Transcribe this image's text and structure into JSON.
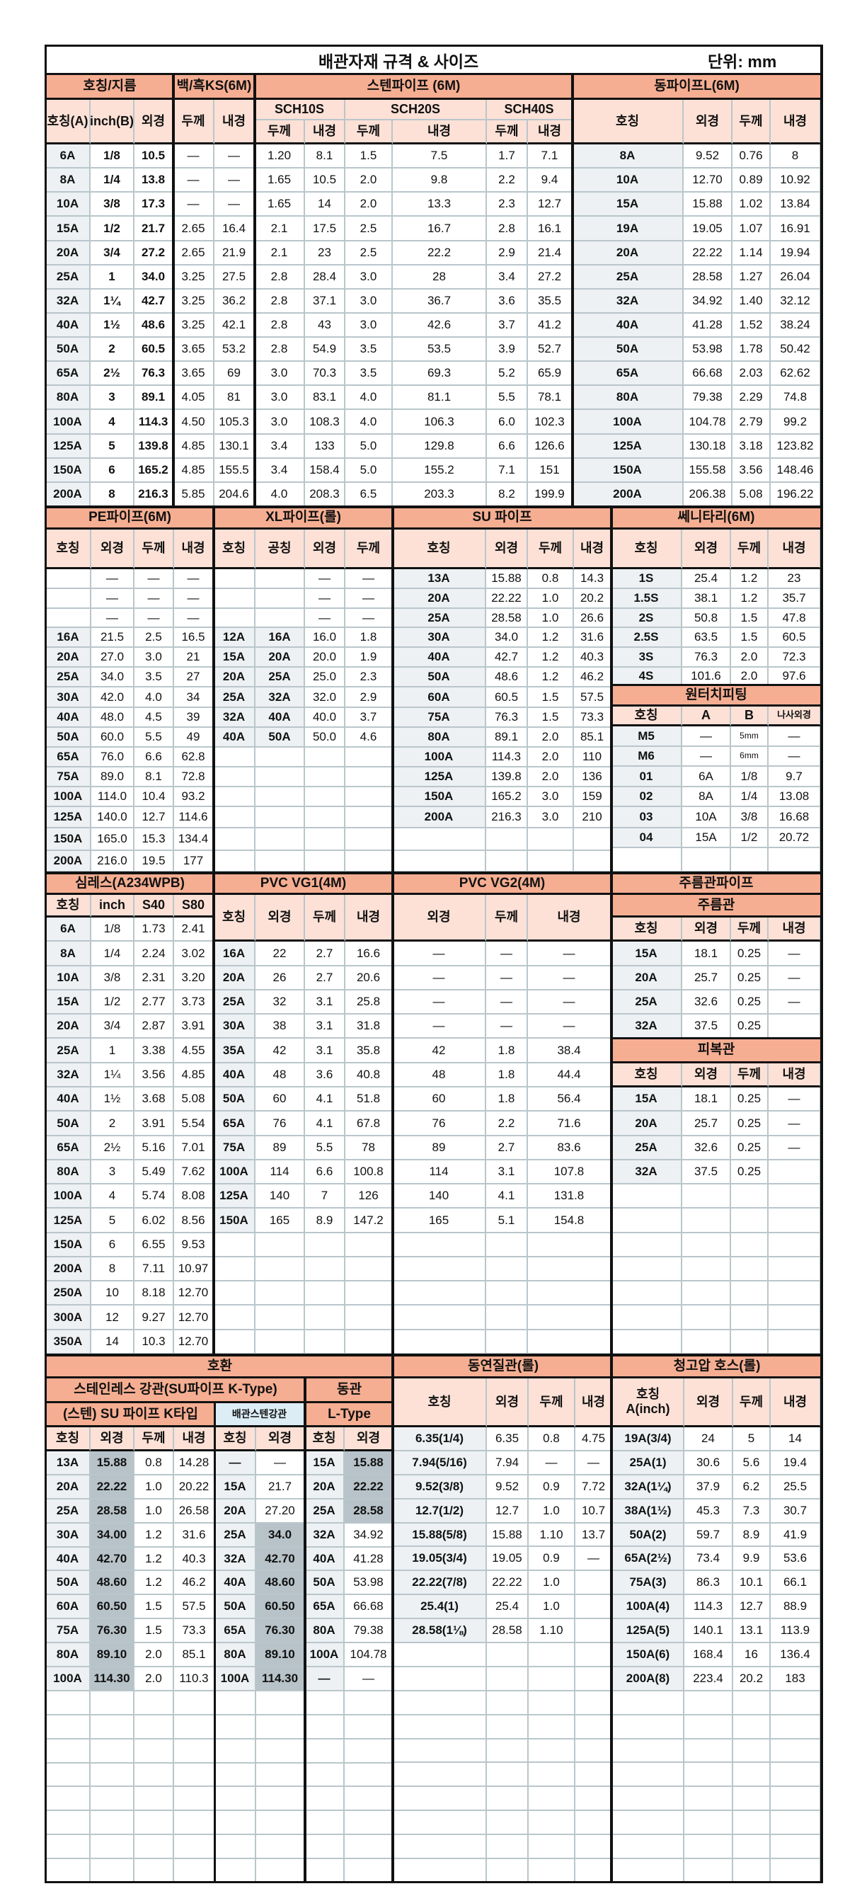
{
  "title": "배관자재 규격 & 사이즈",
  "unit": "단위: mm",
  "colors": {
    "header": "#f5ae92",
    "subheader": "#fde1d6",
    "key_cell": "#edf1f3",
    "highlight": "#b7c3c8",
    "blue_header": "#dcedf6"
  },
  "steel": {
    "header_size": "호칭/지름",
    "header_ks": "백/흑KS(6M)",
    "header_sten": "스텐파이프 (6M)",
    "sch": [
      "SCH10S",
      "SCH20S",
      "SCH40S"
    ],
    "cols": [
      "호칭(A)",
      "inch(B)",
      "외경",
      "두께",
      "내경",
      "두께",
      "내경",
      "두께",
      "내경",
      "두께",
      "내경"
    ],
    "rows": [
      [
        "6A",
        "1/8",
        "10.5",
        "—",
        "—",
        "1.20",
        "8.1",
        "1.5",
        "7.5",
        "1.7",
        "7.1"
      ],
      [
        "8A",
        "1/4",
        "13.8",
        "—",
        "—",
        "1.65",
        "10.5",
        "2.0",
        "9.8",
        "2.2",
        "9.4"
      ],
      [
        "10A",
        "3/8",
        "17.3",
        "—",
        "—",
        "1.65",
        "14",
        "2.0",
        "13.3",
        "2.3",
        "12.7"
      ],
      [
        "15A",
        "1/2",
        "21.7",
        "2.65",
        "16.4",
        "2.1",
        "17.5",
        "2.5",
        "16.7",
        "2.8",
        "16.1"
      ],
      [
        "20A",
        "3/4",
        "27.2",
        "2.65",
        "21.9",
        "2.1",
        "23",
        "2.5",
        "22.2",
        "2.9",
        "21.4"
      ],
      [
        "25A",
        "1",
        "34.0",
        "3.25",
        "27.5",
        "2.8",
        "28.4",
        "3.0",
        "28",
        "3.4",
        "27.2"
      ],
      [
        "32A",
        "1¼",
        "42.7",
        "3.25",
        "36.2",
        "2.8",
        "37.1",
        "3.0",
        "36.7",
        "3.6",
        "35.5"
      ],
      [
        "40A",
        "1½",
        "48.6",
        "3.25",
        "42.1",
        "2.8",
        "43",
        "3.0",
        "42.6",
        "3.7",
        "41.2"
      ],
      [
        "50A",
        "2",
        "60.5",
        "3.65",
        "53.2",
        "2.8",
        "54.9",
        "3.5",
        "53.5",
        "3.9",
        "52.7"
      ],
      [
        "65A",
        "2½",
        "76.3",
        "3.65",
        "69",
        "3.0",
        "70.3",
        "3.5",
        "69.3",
        "5.2",
        "65.9"
      ],
      [
        "80A",
        "3",
        "89.1",
        "4.05",
        "81",
        "3.0",
        "83.1",
        "4.0",
        "81.1",
        "5.5",
        "78.1"
      ],
      [
        "100A",
        "4",
        "114.3",
        "4.50",
        "105.3",
        "3.0",
        "108.3",
        "4.0",
        "106.3",
        "6.0",
        "102.3"
      ],
      [
        "125A",
        "5",
        "139.8",
        "4.85",
        "130.1",
        "3.4",
        "133",
        "5.0",
        "129.8",
        "6.6",
        "126.6"
      ],
      [
        "150A",
        "6",
        "165.2",
        "4.85",
        "155.5",
        "3.4",
        "158.4",
        "5.0",
        "155.2",
        "7.1",
        "151"
      ],
      [
        "200A",
        "8",
        "216.3",
        "5.85",
        "204.6",
        "4.0",
        "208.3",
        "6.5",
        "203.3",
        "8.2",
        "199.9"
      ]
    ]
  },
  "copper": {
    "title": "동파이프L(6M)",
    "cols": [
      "호칭",
      "외경",
      "두께",
      "내경"
    ],
    "rows": [
      [
        "8A",
        "9.52",
        "0.76",
        "8"
      ],
      [
        "10A",
        "12.70",
        "0.89",
        "10.92"
      ],
      [
        "15A",
        "15.88",
        "1.02",
        "13.84"
      ],
      [
        "19A",
        "19.05",
        "1.07",
        "16.91"
      ],
      [
        "20A",
        "22.22",
        "1.14",
        "19.94"
      ],
      [
        "25A",
        "28.58",
        "1.27",
        "26.04"
      ],
      [
        "32A",
        "34.92",
        "1.40",
        "32.12"
      ],
      [
        "40A",
        "41.28",
        "1.52",
        "38.24"
      ],
      [
        "50A",
        "53.98",
        "1.78",
        "50.42"
      ],
      [
        "65A",
        "66.68",
        "2.03",
        "62.62"
      ],
      [
        "80A",
        "79.38",
        "2.29",
        "74.8"
      ],
      [
        "100A",
        "104.78",
        "2.79",
        "99.2"
      ],
      [
        "125A",
        "130.18",
        "3.18",
        "123.82"
      ],
      [
        "150A",
        "155.58",
        "3.56",
        "148.46"
      ],
      [
        "200A",
        "206.38",
        "5.08",
        "196.22"
      ]
    ]
  },
  "pe": {
    "title": "PE파이프(6M)",
    "cols": [
      "호칭",
      "외경",
      "두께",
      "내경"
    ],
    "rows": [
      [
        "",
        "—",
        "—",
        "—"
      ],
      [
        "",
        "—",
        "—",
        "—"
      ],
      [
        "",
        "—",
        "—",
        "—"
      ],
      [
        "16A",
        "21.5",
        "2.5",
        "16.5"
      ],
      [
        "20A",
        "27.0",
        "3.0",
        "21"
      ],
      [
        "25A",
        "34.0",
        "3.5",
        "27"
      ],
      [
        "30A",
        "42.0",
        "4.0",
        "34"
      ],
      [
        "40A",
        "48.0",
        "4.5",
        "39"
      ],
      [
        "50A",
        "60.0",
        "5.5",
        "49"
      ],
      [
        "65A",
        "76.0",
        "6.6",
        "62.8"
      ],
      [
        "75A",
        "89.0",
        "8.1",
        "72.8"
      ],
      [
        "100A",
        "114.0",
        "10.4",
        "93.2"
      ],
      [
        "125A",
        "140.0",
        "12.7",
        "114.6"
      ],
      [
        "150A",
        "165.0",
        "15.3",
        "134.4"
      ],
      [
        "200A",
        "216.0",
        "19.5",
        "177"
      ]
    ]
  },
  "xl": {
    "title": "XL파이프(롤)",
    "cols": [
      "호칭",
      "공칭",
      "외경",
      "두께"
    ],
    "rows": [
      [
        "",
        "",
        "—",
        "—"
      ],
      [
        "",
        "",
        "—",
        "—"
      ],
      [
        "",
        "",
        "—",
        "—"
      ],
      [
        "12A",
        "16A",
        "16.0",
        "1.8"
      ],
      [
        "15A",
        "20A",
        "20.0",
        "1.9"
      ],
      [
        "20A",
        "25A",
        "25.0",
        "2.3"
      ],
      [
        "25A",
        "32A",
        "32.0",
        "2.9"
      ],
      [
        "32A",
        "40A",
        "40.0",
        "3.7"
      ],
      [
        "40A",
        "50A",
        "50.0",
        "4.6"
      ]
    ]
  },
  "su": {
    "title": "SU 파이프",
    "cols": [
      "호칭",
      "외경",
      "두께",
      "내경"
    ],
    "rows": [
      [
        "13A",
        "15.88",
        "0.8",
        "14.3"
      ],
      [
        "20A",
        "22.22",
        "1.0",
        "20.2"
      ],
      [
        "25A",
        "28.58",
        "1.0",
        "26.6"
      ],
      [
        "30A",
        "34.0",
        "1.2",
        "31.6"
      ],
      [
        "40A",
        "42.7",
        "1.2",
        "40.3"
      ],
      [
        "50A",
        "48.6",
        "1.2",
        "46.2"
      ],
      [
        "60A",
        "60.5",
        "1.5",
        "57.5"
      ],
      [
        "75A",
        "76.3",
        "1.5",
        "73.3"
      ],
      [
        "80A",
        "89.1",
        "2.0",
        "85.1"
      ],
      [
        "100A",
        "114.3",
        "2.0",
        "110"
      ],
      [
        "125A",
        "139.8",
        "2.0",
        "136"
      ],
      [
        "150A",
        "165.2",
        "3.0",
        "159"
      ],
      [
        "200A",
        "216.3",
        "3.0",
        "210"
      ]
    ]
  },
  "sanitary": {
    "title": "쎄니타리(6M)",
    "cols": [
      "호칭",
      "외경",
      "두께",
      "내경"
    ],
    "rows": [
      [
        "1S",
        "25.4",
        "1.2",
        "23"
      ],
      [
        "1.5S",
        "38.1",
        "1.2",
        "35.7"
      ],
      [
        "2S",
        "50.8",
        "1.5",
        "47.8"
      ],
      [
        "2.5S",
        "63.5",
        "1.5",
        "60.5"
      ],
      [
        "3S",
        "76.3",
        "2.0",
        "72.3"
      ],
      [
        "4S",
        "101.6",
        "2.0",
        "97.6"
      ]
    ]
  },
  "onetouch": {
    "title": "원터치피팅",
    "cols": [
      "호칭",
      "A",
      "B",
      "나사외경"
    ],
    "rows": [
      [
        "M5",
        "—",
        "5mm",
        "—"
      ],
      [
        "M6",
        "—",
        "6mm",
        "—"
      ],
      [
        "01",
        "6A",
        "1/8",
        "9.7"
      ],
      [
        "02",
        "8A",
        "1/4",
        "13.08"
      ],
      [
        "03",
        "10A",
        "3/8",
        "16.68"
      ],
      [
        "04",
        "15A",
        "1/2",
        "20.72"
      ]
    ]
  },
  "seamless": {
    "title": "심레스(A234WPB)",
    "cols": [
      "호칭",
      "inch",
      "S40",
      "S80"
    ],
    "rows": [
      [
        "6A",
        "1/8",
        "1.73",
        "2.41"
      ],
      [
        "8A",
        "1/4",
        "2.24",
        "3.02"
      ],
      [
        "10A",
        "3/8",
        "2.31",
        "3.20"
      ],
      [
        "15A",
        "1/2",
        "2.77",
        "3.73"
      ],
      [
        "20A",
        "3/4",
        "2.87",
        "3.91"
      ],
      [
        "25A",
        "1",
        "3.38",
        "4.55"
      ],
      [
        "32A",
        "1¼",
        "3.56",
        "4.85"
      ],
      [
        "40A",
        "1½",
        "3.68",
        "5.08"
      ],
      [
        "50A",
        "2",
        "3.91",
        "5.54"
      ],
      [
        "65A",
        "2½",
        "5.16",
        "7.01"
      ],
      [
        "80A",
        "3",
        "5.49",
        "7.62"
      ],
      [
        "100A",
        "4",
        "5.74",
        "8.08"
      ],
      [
        "125A",
        "5",
        "6.02",
        "8.56"
      ],
      [
        "150A",
        "6",
        "6.55",
        "9.53"
      ],
      [
        "200A",
        "8",
        "7.11",
        "10.97"
      ],
      [
        "250A",
        "10",
        "8.18",
        "12.70"
      ],
      [
        "300A",
        "12",
        "9.27",
        "12.70"
      ],
      [
        "350A",
        "14",
        "10.3",
        "12.70"
      ]
    ]
  },
  "pvc1": {
    "title": "PVC VG1(4M)",
    "cols": [
      "호칭",
      "외경",
      "두께",
      "내경"
    ],
    "rows": [
      [
        "16A",
        "22",
        "2.7",
        "16.6"
      ],
      [
        "20A",
        "26",
        "2.7",
        "20.6"
      ],
      [
        "25A",
        "32",
        "3.1",
        "25.8"
      ],
      [
        "30A",
        "38",
        "3.1",
        "31.8"
      ],
      [
        "35A",
        "42",
        "3.1",
        "35.8"
      ],
      [
        "40A",
        "48",
        "3.6",
        "40.8"
      ],
      [
        "50A",
        "60",
        "4.1",
        "51.8"
      ],
      [
        "65A",
        "76",
        "4.1",
        "67.8"
      ],
      [
        "75A",
        "89",
        "5.5",
        "78"
      ],
      [
        "100A",
        "114",
        "6.6",
        "100.8"
      ],
      [
        "125A",
        "140",
        "7",
        "126"
      ],
      [
        "150A",
        "165",
        "8.9",
        "147.2"
      ]
    ]
  },
  "pvc2": {
    "title": "PVC VG2(4M)",
    "cols": [
      "외경",
      "두께",
      "내경"
    ],
    "rows": [
      [
        "—",
        "—",
        "—"
      ],
      [
        "—",
        "—",
        "—"
      ],
      [
        "—",
        "—",
        "—"
      ],
      [
        "—",
        "—",
        "—"
      ],
      [
        "42",
        "1.8",
        "38.4"
      ],
      [
        "48",
        "1.8",
        "44.4"
      ],
      [
        "60",
        "1.8",
        "56.4"
      ],
      [
        "76",
        "2.2",
        "71.6"
      ],
      [
        "89",
        "2.7",
        "83.6"
      ],
      [
        "114",
        "3.1",
        "107.8"
      ],
      [
        "140",
        "4.1",
        "131.8"
      ],
      [
        "165",
        "5.1",
        "154.8"
      ]
    ]
  },
  "corrugated": {
    "title": "주름관파이프",
    "sub1": "주름관",
    "sub2": "피복관",
    "cols": [
      "호칭",
      "외경",
      "두께",
      "내경"
    ],
    "rows1": [
      [
        "15A",
        "18.1",
        "0.25",
        "—"
      ],
      [
        "20A",
        "25.7",
        "0.25",
        "—"
      ],
      [
        "25A",
        "32.6",
        "0.25",
        "—"
      ],
      [
        "32A",
        "37.5",
        "0.25",
        ""
      ]
    ],
    "rows2": [
      [
        "15A",
        "18.1",
        "0.25",
        "—"
      ],
      [
        "20A",
        "25.7",
        "0.25",
        "—"
      ],
      [
        "25A",
        "32.6",
        "0.25",
        "—"
      ],
      [
        "32A",
        "37.5",
        "0.25",
        ""
      ]
    ]
  },
  "compat": {
    "title": "호환",
    "sub_sten": "스테인레스 강관(SU파이프 K-Type)",
    "sub_copper": "동관",
    "sub_ktype": "(스텐) SU 파이프 K타입",
    "sub_pipe": "배관스텐강관",
    "sub_ltype": "L-Type",
    "cols": [
      "호칭",
      "외경",
      "두께",
      "내경",
      "호칭",
      "외경",
      "호칭",
      "외경"
    ],
    "rows": [
      [
        "13A",
        "15.88",
        "0.8",
        "14.28",
        "—",
        "—",
        "15A",
        "15.88"
      ],
      [
        "20A",
        "22.22",
        "1.0",
        "20.22",
        "15A",
        "21.7",
        "20A",
        "22.22"
      ],
      [
        "25A",
        "28.58",
        "1.0",
        "26.58",
        "20A",
        "27.20",
        "25A",
        "28.58"
      ],
      [
        "30A",
        "34.00",
        "1.2",
        "31.6",
        "25A",
        "34.0",
        "32A",
        "34.92"
      ],
      [
        "40A",
        "42.70",
        "1.2",
        "40.3",
        "32A",
        "42.70",
        "40A",
        "41.28"
      ],
      [
        "50A",
        "48.60",
        "1.2",
        "46.2",
        "40A",
        "48.60",
        "50A",
        "53.98"
      ],
      [
        "60A",
        "60.50",
        "1.5",
        "57.5",
        "50A",
        "60.50",
        "65A",
        "66.68"
      ],
      [
        "75A",
        "76.30",
        "1.5",
        "73.3",
        "65A",
        "76.30",
        "80A",
        "79.38"
      ],
      [
        "80A",
        "89.10",
        "2.0",
        "85.1",
        "80A",
        "89.10",
        "100A",
        "104.78"
      ],
      [
        "100A",
        "114.30",
        "2.0",
        "110.3",
        "100A",
        "114.30",
        "—",
        "—"
      ]
    ]
  },
  "soft_copper": {
    "title": "동연질관(롤)",
    "cols": [
      "호칭",
      "외경",
      "두께",
      "내경"
    ],
    "rows": [
      [
        "6.35(1/4)",
        "6.35",
        "0.8",
        "4.75"
      ],
      [
        "7.94(5/16)",
        "7.94",
        "—",
        "—"
      ],
      [
        "9.52(3/8)",
        "9.52",
        "0.9",
        "7.72"
      ],
      [
        "12.7(1/2)",
        "12.7",
        "1.0",
        "10.7"
      ],
      [
        "15.88(5/8)",
        "15.88",
        "1.10",
        "13.7"
      ],
      [
        "19.05(3/4)",
        "19.05",
        "0.9",
        "—"
      ],
      [
        "22.22(7/8)",
        "22.22",
        "1.0",
        ""
      ],
      [
        "25.4(1)",
        "25.4",
        "1.0",
        ""
      ],
      [
        "28.58(1⅛)",
        "28.58",
        "1.10",
        ""
      ]
    ]
  },
  "hose": {
    "title": "청고압 호스(롤)",
    "cols": [
      "호칭\nA(inch)",
      "외경",
      "두께",
      "내경"
    ],
    "rows": [
      [
        "19A(3/4)",
        "24",
        "5",
        "14"
      ],
      [
        "25A(1)",
        "30.6",
        "5.6",
        "19.4"
      ],
      [
        "32A(1¼)",
        "37.9",
        "6.2",
        "25.5"
      ],
      [
        "38A(1½)",
        "45.3",
        "7.3",
        "30.7"
      ],
      [
        "50A(2)",
        "59.7",
        "8.9",
        "41.9"
      ],
      [
        "65A(2½)",
        "73.4",
        "9.9",
        "53.6"
      ],
      [
        "75A(3)",
        "86.3",
        "10.1",
        "66.1"
      ],
      [
        "100A(4)",
        "114.3",
        "12.7",
        "88.9"
      ],
      [
        "125A(5)",
        "140.1",
        "13.1",
        "113.9"
      ],
      [
        "150A(6)",
        "168.4",
        "16",
        "136.4"
      ],
      [
        "200A(8)",
        "223.4",
        "20.2",
        "183"
      ]
    ]
  }
}
